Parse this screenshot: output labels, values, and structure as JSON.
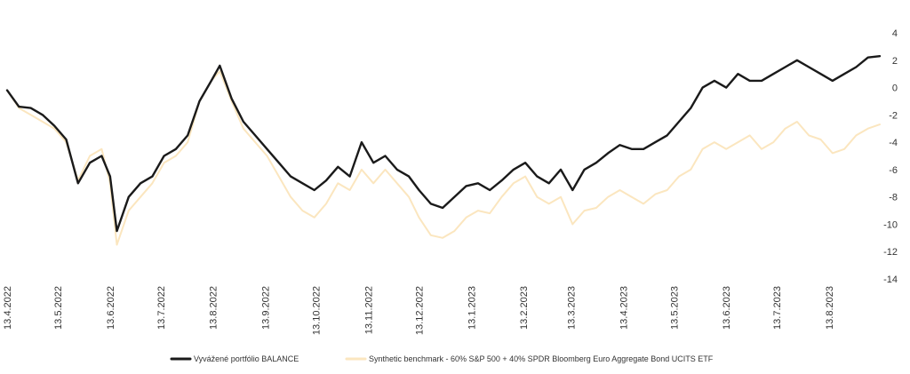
{
  "chart_data": {
    "type": "line",
    "title": "",
    "xlabel": "",
    "ylabel": "",
    "ylim": [
      -14,
      4
    ],
    "yticks": [
      4,
      2,
      0,
      -2,
      -4,
      -6,
      -8,
      -10,
      -12,
      -14
    ],
    "y_axis_side": "right",
    "grid": false,
    "legend_position": "bottom-center",
    "x_range": [
      "2022-04-13",
      "2023-09-12"
    ],
    "xtick_labels": [
      "13.4.2022",
      "13.5.2022",
      "13.6.2022",
      "13.7.2022",
      "13.8.2022",
      "13.9.2022",
      "13.10.2022",
      "13.11.2022",
      "13.12.2022",
      "13.1.2023",
      "13.2.2023",
      "13.3.2023",
      "13.4.2023",
      "13.5.2023",
      "13.6.2023",
      "13.7.2023",
      "13.8.2023"
    ],
    "xtick_dates": [
      "2022-04-13",
      "2022-05-13",
      "2022-06-13",
      "2022-07-13",
      "2022-08-13",
      "2022-09-13",
      "2022-10-13",
      "2022-11-13",
      "2022-12-13",
      "2023-01-13",
      "2023-02-13",
      "2023-03-13",
      "2023-04-13",
      "2023-05-13",
      "2023-06-13",
      "2023-07-13",
      "2023-08-13"
    ],
    "series": [
      {
        "name": "Vyvážené portfólio BALANCE",
        "color": "#1a1a1a",
        "points": [
          [
            "2022-04-13",
            -0.2
          ],
          [
            "2022-04-20",
            -1.4
          ],
          [
            "2022-04-27",
            -1.5
          ],
          [
            "2022-05-04",
            -2.0
          ],
          [
            "2022-05-11",
            -2.8
          ],
          [
            "2022-05-18",
            -3.8
          ],
          [
            "2022-05-25",
            -7.0
          ],
          [
            "2022-06-01",
            -5.5
          ],
          [
            "2022-06-08",
            -5.0
          ],
          [
            "2022-06-13",
            -6.5
          ],
          [
            "2022-06-17",
            -10.5
          ],
          [
            "2022-06-24",
            -8.0
          ],
          [
            "2022-07-01",
            -7.0
          ],
          [
            "2022-07-08",
            -6.5
          ],
          [
            "2022-07-15",
            -5.0
          ],
          [
            "2022-07-22",
            -4.5
          ],
          [
            "2022-07-29",
            -3.5
          ],
          [
            "2022-08-05",
            -1.0
          ],
          [
            "2022-08-12",
            0.5
          ],
          [
            "2022-08-17",
            1.6
          ],
          [
            "2022-08-24",
            -0.8
          ],
          [
            "2022-08-31",
            -2.5
          ],
          [
            "2022-09-07",
            -3.5
          ],
          [
            "2022-09-14",
            -4.5
          ],
          [
            "2022-09-21",
            -5.5
          ],
          [
            "2022-09-28",
            -6.5
          ],
          [
            "2022-10-05",
            -7.0
          ],
          [
            "2022-10-12",
            -7.5
          ],
          [
            "2022-10-19",
            -6.8
          ],
          [
            "2022-10-26",
            -5.8
          ],
          [
            "2022-11-02",
            -6.5
          ],
          [
            "2022-11-09",
            -4.0
          ],
          [
            "2022-11-16",
            -5.5
          ],
          [
            "2022-11-23",
            -5.0
          ],
          [
            "2022-11-30",
            -6.0
          ],
          [
            "2022-12-07",
            -6.5
          ],
          [
            "2022-12-13",
            -7.5
          ],
          [
            "2022-12-20",
            -8.5
          ],
          [
            "2022-12-27",
            -8.8
          ],
          [
            "2023-01-03",
            -8.0
          ],
          [
            "2023-01-10",
            -7.2
          ],
          [
            "2023-01-17",
            -7.0
          ],
          [
            "2023-01-24",
            -7.5
          ],
          [
            "2023-01-31",
            -6.8
          ],
          [
            "2023-02-07",
            -6.0
          ],
          [
            "2023-02-14",
            -5.5
          ],
          [
            "2023-02-21",
            -6.5
          ],
          [
            "2023-02-28",
            -7.0
          ],
          [
            "2023-03-07",
            -6.0
          ],
          [
            "2023-03-14",
            -7.5
          ],
          [
            "2023-03-21",
            -6.0
          ],
          [
            "2023-03-28",
            -5.5
          ],
          [
            "2023-04-04",
            -4.8
          ],
          [
            "2023-04-11",
            -4.2
          ],
          [
            "2023-04-18",
            -4.5
          ],
          [
            "2023-04-25",
            -4.5
          ],
          [
            "2023-05-02",
            -4.0
          ],
          [
            "2023-05-09",
            -3.5
          ],
          [
            "2023-05-16",
            -2.5
          ],
          [
            "2023-05-23",
            -1.5
          ],
          [
            "2023-05-30",
            0.0
          ],
          [
            "2023-06-06",
            0.5
          ],
          [
            "2023-06-13",
            0.0
          ],
          [
            "2023-06-20",
            1.0
          ],
          [
            "2023-06-27",
            0.5
          ],
          [
            "2023-07-04",
            0.5
          ],
          [
            "2023-07-11",
            1.0
          ],
          [
            "2023-07-18",
            1.5
          ],
          [
            "2023-07-25",
            2.0
          ],
          [
            "2023-08-01",
            1.5
          ],
          [
            "2023-08-08",
            1.0
          ],
          [
            "2023-08-15",
            0.5
          ],
          [
            "2023-08-22",
            1.0
          ],
          [
            "2023-08-29",
            1.5
          ],
          [
            "2023-09-05",
            2.2
          ],
          [
            "2023-09-12",
            2.3
          ]
        ]
      },
      {
        "name": "Synthetic benchmark - 60% S&P 500 + 40% SPDR Bloomberg Euro Aggregate Bond UCITS ETF",
        "color": "#fbe6bf",
        "points": [
          [
            "2022-04-13",
            -0.2
          ],
          [
            "2022-04-20",
            -1.5
          ],
          [
            "2022-04-27",
            -2.0
          ],
          [
            "2022-05-04",
            -2.5
          ],
          [
            "2022-05-11",
            -3.0
          ],
          [
            "2022-05-18",
            -4.0
          ],
          [
            "2022-05-25",
            -6.8
          ],
          [
            "2022-06-01",
            -5.0
          ],
          [
            "2022-06-08",
            -4.5
          ],
          [
            "2022-06-13",
            -7.0
          ],
          [
            "2022-06-17",
            -11.5
          ],
          [
            "2022-06-24",
            -9.0
          ],
          [
            "2022-07-01",
            -8.0
          ],
          [
            "2022-07-08",
            -7.0
          ],
          [
            "2022-07-15",
            -5.5
          ],
          [
            "2022-07-22",
            -5.0
          ],
          [
            "2022-07-29",
            -4.0
          ],
          [
            "2022-08-05",
            -1.0
          ],
          [
            "2022-08-12",
            0.5
          ],
          [
            "2022-08-17",
            1.2
          ],
          [
            "2022-08-24",
            -1.0
          ],
          [
            "2022-08-31",
            -3.0
          ],
          [
            "2022-09-07",
            -4.0
          ],
          [
            "2022-09-14",
            -5.0
          ],
          [
            "2022-09-21",
            -6.5
          ],
          [
            "2022-09-28",
            -8.0
          ],
          [
            "2022-10-05",
            -9.0
          ],
          [
            "2022-10-12",
            -9.5
          ],
          [
            "2022-10-19",
            -8.5
          ],
          [
            "2022-10-26",
            -7.0
          ],
          [
            "2022-11-02",
            -7.5
          ],
          [
            "2022-11-09",
            -6.0
          ],
          [
            "2022-11-16",
            -7.0
          ],
          [
            "2022-11-23",
            -6.0
          ],
          [
            "2022-11-30",
            -7.0
          ],
          [
            "2022-12-07",
            -8.0
          ],
          [
            "2022-12-13",
            -9.5
          ],
          [
            "2022-12-20",
            -10.8
          ],
          [
            "2022-12-27",
            -11.0
          ],
          [
            "2023-01-03",
            -10.5
          ],
          [
            "2023-01-10",
            -9.5
          ],
          [
            "2023-01-17",
            -9.0
          ],
          [
            "2023-01-24",
            -9.2
          ],
          [
            "2023-01-31",
            -8.0
          ],
          [
            "2023-02-07",
            -7.0
          ],
          [
            "2023-02-14",
            -6.5
          ],
          [
            "2023-02-21",
            -8.0
          ],
          [
            "2023-02-28",
            -8.5
          ],
          [
            "2023-03-07",
            -8.0
          ],
          [
            "2023-03-14",
            -10.0
          ],
          [
            "2023-03-21",
            -9.0
          ],
          [
            "2023-03-28",
            -8.8
          ],
          [
            "2023-04-04",
            -8.0
          ],
          [
            "2023-04-11",
            -7.5
          ],
          [
            "2023-04-18",
            -8.0
          ],
          [
            "2023-04-25",
            -8.5
          ],
          [
            "2023-05-02",
            -7.8
          ],
          [
            "2023-05-09",
            -7.5
          ],
          [
            "2023-05-16",
            -6.5
          ],
          [
            "2023-05-23",
            -6.0
          ],
          [
            "2023-05-30",
            -4.5
          ],
          [
            "2023-06-06",
            -4.0
          ],
          [
            "2023-06-13",
            -4.5
          ],
          [
            "2023-06-20",
            -4.0
          ],
          [
            "2023-06-27",
            -3.5
          ],
          [
            "2023-07-04",
            -4.5
          ],
          [
            "2023-07-11",
            -4.0
          ],
          [
            "2023-07-18",
            -3.0
          ],
          [
            "2023-07-25",
            -2.5
          ],
          [
            "2023-08-01",
            -3.5
          ],
          [
            "2023-08-08",
            -3.8
          ],
          [
            "2023-08-15",
            -4.8
          ],
          [
            "2023-08-22",
            -4.5
          ],
          [
            "2023-08-29",
            -3.5
          ],
          [
            "2023-09-05",
            -3.0
          ],
          [
            "2023-09-12",
            -2.7
          ]
        ]
      }
    ]
  }
}
